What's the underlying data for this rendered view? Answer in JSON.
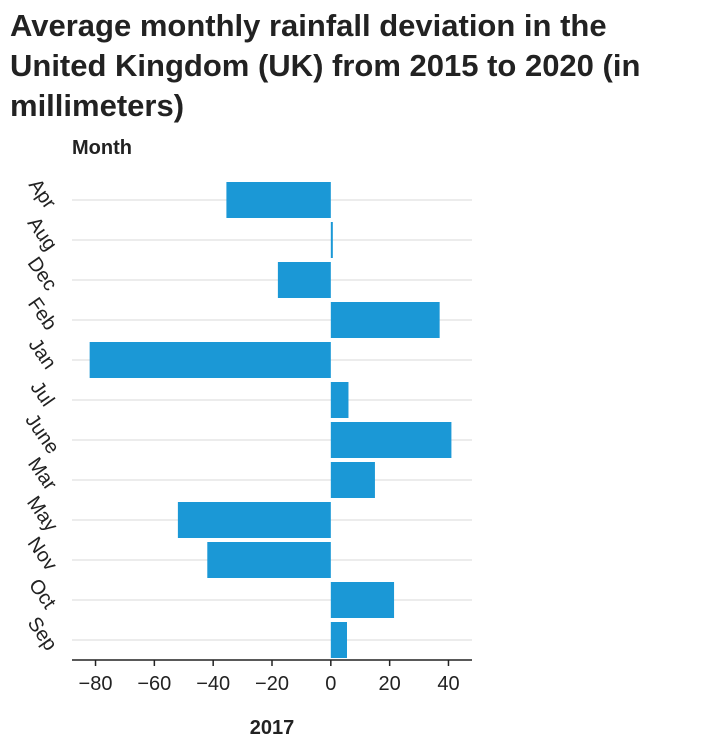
{
  "chart_data": {
    "type": "bar",
    "orientation": "horizontal",
    "title": "Average monthly rainfall deviation in the United Kingdom (UK) from 2015 to 2020 (in millimeters)",
    "xlabel": "2017",
    "ylabel": "Month",
    "categories": [
      "Apr",
      "Aug",
      "Dec",
      "Feb",
      "Jan",
      "Jul",
      "June",
      "Mar",
      "May",
      "Nov",
      "Oct",
      "Sep"
    ],
    "values": [
      -35.5,
      0.5,
      -18,
      37,
      -82,
      6,
      41,
      15,
      -52,
      -42,
      21.5,
      5.5
    ],
    "xlim": [
      -88,
      48
    ],
    "xticks": [
      -80,
      -60,
      -40,
      -20,
      0,
      20,
      40
    ],
    "xtick_labels": [
      "−80",
      "−60",
      "−40",
      "−20",
      "0",
      "20",
      "40"
    ],
    "grid": "horizontal",
    "bar_color": "#1b98d6",
    "grid_color": "#d9d9d9",
    "axis_color": "#222222"
  }
}
